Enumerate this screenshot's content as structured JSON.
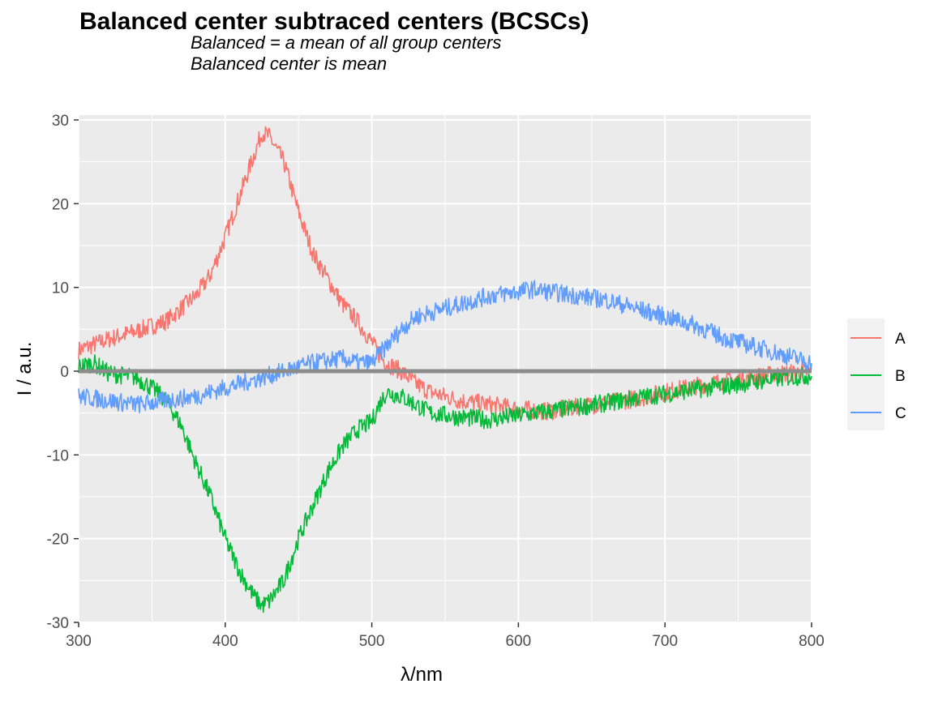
{
  "chart_data": {
    "type": "line",
    "title": "Balanced center subtraced centers (BCSCs)",
    "subtitle_lines": [
      "Balanced = a mean of all group centers",
      "Balanced center is mean"
    ],
    "xlabel": "λ/nm",
    "ylabel": "I / a.u.",
    "xlim": [
      300,
      800
    ],
    "ylim": [
      -30,
      30
    ],
    "x_ticks": [
      300,
      400,
      500,
      600,
      700,
      800
    ],
    "y_ticks": [
      -30,
      -20,
      -10,
      0,
      10,
      20,
      30
    ],
    "grid": true,
    "legend_position": "right",
    "reference_line": {
      "y": 0,
      "color": "#8c8c8c"
    },
    "series": [
      {
        "name": "A",
        "color": "#F8766D",
        "x": [
          300,
          320,
          340,
          360,
          380,
          390,
          400,
          410,
          420,
          425,
          430,
          440,
          450,
          460,
          470,
          480,
          490,
          500,
          505,
          510,
          520,
          530,
          540,
          550,
          560,
          580,
          600,
          620,
          640,
          660,
          680,
          700,
          720,
          740,
          760,
          780,
          800
        ],
        "y": [
          2.5,
          3.8,
          4.8,
          6.0,
          9.0,
          11.5,
          16.0,
          21.0,
          26.0,
          28.5,
          28.0,
          25.0,
          19.0,
          14.0,
          11.0,
          8.0,
          6.0,
          3.5,
          2.0,
          1.0,
          0.0,
          -1.5,
          -2.5,
          -3.0,
          -3.5,
          -4.0,
          -4.5,
          -4.8,
          -4.3,
          -3.8,
          -3.3,
          -2.5,
          -1.8,
          -1.2,
          -0.7,
          -0.3,
          0.0
        ]
      },
      {
        "name": "B",
        "color": "#00BA38",
        "x": [
          300,
          310,
          320,
          340,
          350,
          360,
          370,
          380,
          390,
          400,
          410,
          420,
          425,
          430,
          440,
          450,
          460,
          470,
          480,
          490,
          500,
          505,
          510,
          520,
          530,
          540,
          560,
          580,
          600,
          620,
          640,
          660,
          680,
          700,
          720,
          740,
          760,
          780,
          800
        ],
        "y": [
          0.5,
          1.0,
          -0.2,
          -0.8,
          -2.0,
          -3.5,
          -6.5,
          -11.0,
          -15.0,
          -20.0,
          -24.0,
          -27.0,
          -28.0,
          -27.5,
          -25.0,
          -20.0,
          -16.0,
          -12.0,
          -9.0,
          -7.0,
          -6.0,
          -4.0,
          -2.5,
          -3.0,
          -4.0,
          -5.0,
          -5.5,
          -5.8,
          -5.3,
          -4.8,
          -4.3,
          -3.8,
          -3.2,
          -2.7,
          -2.2,
          -1.8,
          -1.3,
          -0.8,
          -0.5
        ]
      },
      {
        "name": "C",
        "color": "#619CFF",
        "x": [
          300,
          320,
          340,
          360,
          380,
          400,
          420,
          440,
          460,
          480,
          490,
          500,
          505,
          510,
          520,
          530,
          540,
          560,
          580,
          600,
          610,
          620,
          640,
          660,
          680,
          700,
          720,
          740,
          760,
          780,
          800
        ],
        "y": [
          -3.0,
          -3.5,
          -4.0,
          -3.5,
          -3.0,
          -2.0,
          -1.0,
          0.0,
          1.0,
          1.5,
          1.0,
          1.0,
          2.0,
          3.0,
          5.0,
          6.5,
          7.0,
          8.0,
          9.0,
          9.5,
          9.8,
          9.5,
          9.0,
          8.5,
          7.5,
          6.5,
          5.5,
          4.0,
          3.0,
          2.0,
          1.0
        ]
      }
    ]
  }
}
